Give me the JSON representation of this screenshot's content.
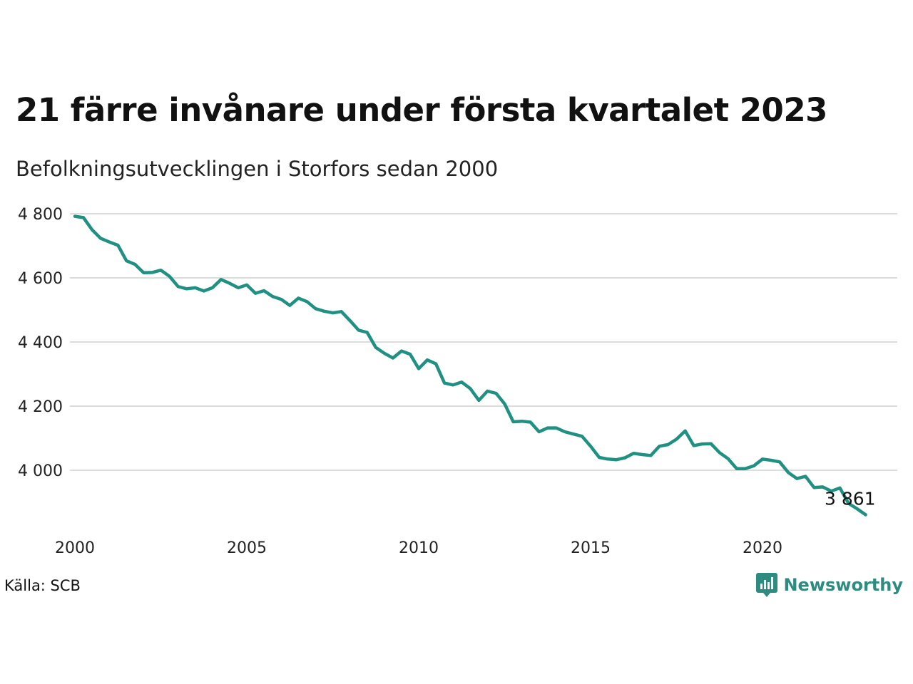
{
  "title": "21 färre invånare under första kvartalet 2023",
  "subtitle": "Befolkningsutvecklingen i Storfors sedan 2000",
  "source": "Källa: SCB",
  "brand": {
    "name": "Newsworthy",
    "color": "#2e8b7f"
  },
  "chart_data": {
    "type": "line",
    "title": "21 färre invånare under första kvartalet 2023",
    "subtitle": "Befolkningsutvecklingen i Storfors sedan 2000",
    "xlim": [
      2000,
      2024
    ],
    "ylim": [
      3830,
      4810
    ],
    "x_ticks": [
      2000,
      2005,
      2010,
      2015,
      2020
    ],
    "x_tick_labels": [
      "2000",
      "2005",
      "2010",
      "2015",
      "2020"
    ],
    "y_ticks": [
      4000,
      4200,
      4400,
      4600,
      4800
    ],
    "y_tick_labels": [
      "4 000",
      "4 200",
      "4 400",
      "4 600",
      "4 800"
    ],
    "grid": true,
    "line_color": "#1f9082",
    "annotation": {
      "text": "3 861",
      "x": 2023.0,
      "y": 3861
    },
    "series": [
      {
        "x": [
          2000.0,
          2000.25,
          2000.5,
          2000.75,
          2001.0,
          2001.25,
          2001.5,
          2001.75,
          2002.0,
          2002.25,
          2002.5,
          2002.75,
          2003.0,
          2003.25,
          2003.5,
          2003.75,
          2004.0,
          2004.25,
          2004.5,
          2004.75,
          2005.0,
          2005.25,
          2005.5,
          2005.75,
          2006.0,
          2006.25,
          2006.5,
          2006.75,
          2007.0,
          2007.25,
          2007.5,
          2007.75,
          2008.0,
          2008.25,
          2008.5,
          2008.75,
          2009.0,
          2009.25,
          2009.5,
          2009.75,
          2010.0,
          2010.25,
          2010.5,
          2010.75,
          2011.0,
          2011.25,
          2011.5,
          2011.75,
          2012.0,
          2012.25,
          2012.5,
          2012.75,
          2013.0,
          2013.25,
          2013.5,
          2013.75,
          2014.0,
          2014.25,
          2014.5,
          2014.75,
          2015.0,
          2015.25,
          2015.5,
          2015.75,
          2016.0,
          2016.25,
          2016.5,
          2016.75,
          2017.0,
          2017.25,
          2017.5,
          2017.75,
          2018.0,
          2018.25,
          2018.5,
          2018.75,
          2019.0,
          2019.25,
          2019.5,
          2019.75,
          2020.0,
          2020.25,
          2020.5,
          2020.75,
          2021.0,
          2021.25,
          2021.5,
          2021.75,
          2022.0,
          2022.25,
          2022.5,
          2022.75,
          2023.0
        ],
        "values": [
          4792,
          4788,
          4750,
          4723,
          4712,
          4702,
          4653,
          4642,
          4616,
          4617,
          4624,
          4605,
          4573,
          4566,
          4569,
          4559,
          4569,
          4595,
          4583,
          4569,
          4578,
          4552,
          4560,
          4542,
          4533,
          4514,
          4537,
          4526,
          4504,
          4496,
          4491,
          4495,
          4467,
          4437,
          4430,
          4383,
          4365,
          4350,
          4372,
          4362,
          4317,
          4344,
          4332,
          4272,
          4266,
          4275,
          4255,
          4218,
          4247,
          4240,
          4207,
          4151,
          4153,
          4150,
          4120,
          4132,
          4132,
          4120,
          4113,
          4106,
          4075,
          4040,
          4035,
          4033,
          4039,
          4053,
          4049,
          4046,
          4075,
          4080,
          4097,
          4123,
          4077,
          4082,
          4083,
          4055,
          4036,
          4005,
          4005,
          4014,
          4035,
          4031,
          4026,
          3993,
          3974,
          3981,
          3946,
          3948,
          3935,
          3945,
          3897,
          3880,
          3861
        ]
      }
    ]
  }
}
